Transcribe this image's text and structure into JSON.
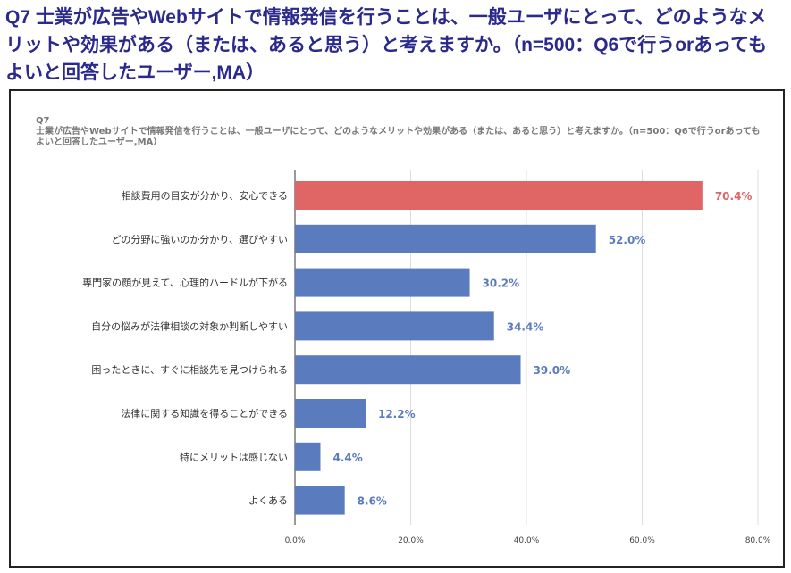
{
  "heading": "Q7 士業が広告やWebサイトで情報発信を行うことは、一般ユーザにとって、どのようなメリットや効果がある（または、あると思う）と考えますか。（n=500：Q6で行うorあってもよいと回答したユーザー,MA）",
  "chart_data": {
    "type": "bar",
    "orientation": "horizontal",
    "title_line1": "Q7",
    "title_line2": "士業が広告やWebサイトで情報発信を行うことは、一般ユーザにとって、どのようなメリットや効果がある（または、あると思う）と考えますか。（n=500：Q6で行うorあってもよいと回答したユーザー,MA）",
    "categories": [
      "相談費用の目安が分かり、安心できる",
      "どの分野に強いのか分かり、選びやすい",
      "専門家の顔が見えて、心理的ハードルが下がる",
      "自分の悩みが法律相談の対象か判断しやすい",
      "困ったときに、すぐに相談先を見つけられる",
      "法律に関する知識を得ることができる",
      "特にメリットは感じない",
      "よくある"
    ],
    "values": [
      70.4,
      52.0,
      30.2,
      34.4,
      39.0,
      12.2,
      4.4,
      8.6
    ],
    "data_labels": [
      "70.4%",
      "52.0%",
      "30.2%",
      "34.4%",
      "39.0%",
      "12.2%",
      "4.4%",
      "8.6%"
    ],
    "xlim": [
      0,
      80
    ],
    "xticks": [
      "0.0%",
      "20.0%",
      "40.0%",
      "60.0%",
      "80.0%"
    ],
    "grid": true,
    "colors": {
      "highlight": "#e06666",
      "default": "#5b7bbf",
      "highlight_label": "#e06666",
      "default_label": "#5b7bbf"
    },
    "highlight_index": 0
  }
}
